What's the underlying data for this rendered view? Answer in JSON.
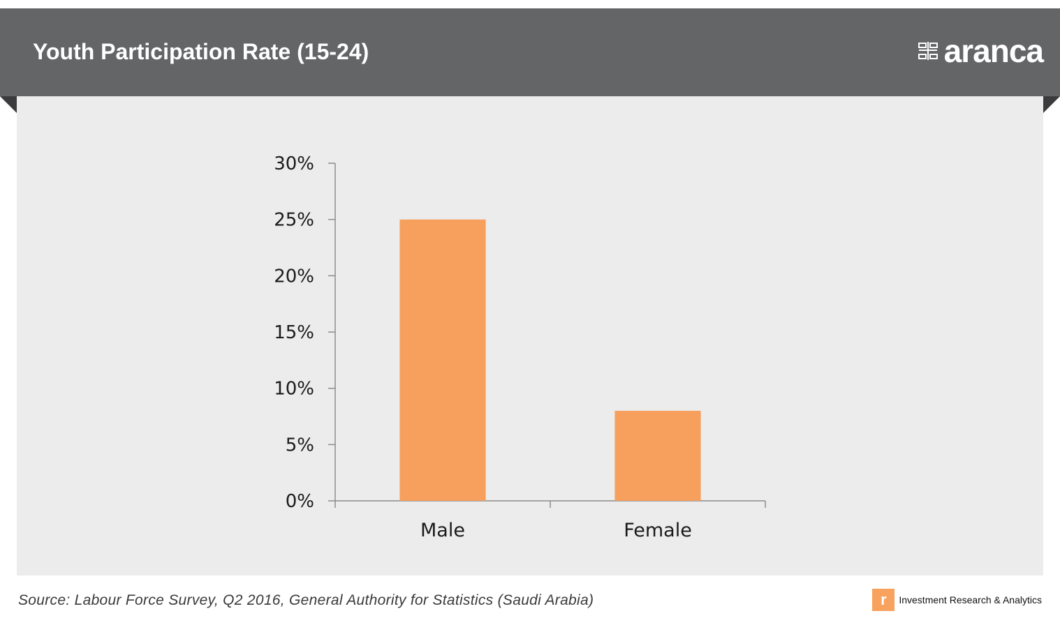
{
  "header": {
    "title": "Youth Participation Rate (15-24)",
    "brand_name": "aranca",
    "brand_icon": "aranca-logo-icon"
  },
  "footer": {
    "source": "Source: Labour Force Survey, Q2 2016, General Authority for Statistics (Saudi Arabia)",
    "tagline": "Investment Research & Analytics",
    "tagline_icon": "aranca-badge-icon"
  },
  "colors": {
    "banner": "#646567",
    "panel": "#ececec",
    "bar": "#f7a05e",
    "axis": "#8c8c8c"
  },
  "chart_data": {
    "type": "bar",
    "categories": [
      "Male",
      "Female"
    ],
    "values": [
      0.25,
      0.08
    ],
    "ylim": [
      0,
      0.3
    ],
    "ytick_values": [
      0,
      0.05,
      0.1,
      0.15,
      0.2,
      0.25,
      0.3
    ],
    "ytick_labels": [
      "0%",
      "5%",
      "10%",
      "15%",
      "20%",
      "25%",
      "30%"
    ],
    "title": "",
    "xlabel": "",
    "ylabel": "",
    "grid": false,
    "legend": "none"
  }
}
